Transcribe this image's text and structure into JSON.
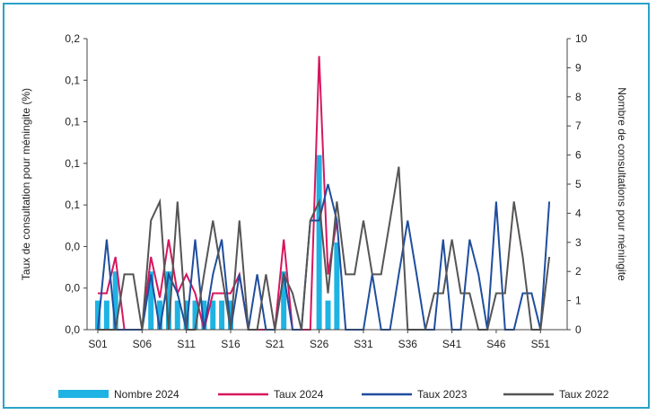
{
  "chart_data": {
    "type": "bar",
    "y_left_label": "Taux de consultation pour méningite (%)",
    "y_right_label": "Nombre de consultations pour méningite",
    "y_left_ticks": [
      "0,0",
      "0,0",
      "0,0",
      "0,1",
      "0,1",
      "0,1",
      "0,1",
      "0,2"
    ],
    "y_left_range": [
      0,
      0.2
    ],
    "y_right_ticks": [
      "0",
      "1",
      "2",
      "3",
      "4",
      "5",
      "6",
      "7",
      "8",
      "9",
      "10"
    ],
    "y_right_range": [
      0,
      10
    ],
    "x_range": [
      1,
      53
    ],
    "x_ticks": [
      "S01",
      "S06",
      "S11",
      "S16",
      "S21",
      "S26",
      "S31",
      "S36",
      "S41",
      "S46",
      "S51"
    ],
    "x_tick_weeks": [
      1,
      6,
      11,
      16,
      21,
      26,
      31,
      36,
      41,
      46,
      51
    ],
    "grid": false,
    "legend_position": "bottom",
    "series": [
      {
        "name": "Nombre 2024",
        "kind": "bar",
        "axis": "right",
        "color": "#1fb3e4",
        "weeks": [
          1,
          2,
          3,
          4,
          5,
          6,
          7,
          8,
          9,
          10,
          11,
          12,
          13,
          14,
          15,
          16,
          17,
          18,
          19,
          20,
          21,
          22,
          23,
          24,
          25,
          26,
          27,
          28
        ],
        "values": [
          1,
          1,
          2,
          0,
          0,
          0,
          2,
          1,
          2,
          1,
          1,
          1,
          1,
          1,
          1,
          1,
          0,
          0,
          0,
          0,
          0,
          2,
          0,
          0,
          0,
          6,
          1,
          3
        ]
      },
      {
        "name": "Taux 2024",
        "kind": "line",
        "axis": "right",
        "color": "#d6175f",
        "weeks": [
          1,
          2,
          3,
          4,
          5,
          6,
          7,
          8,
          9,
          10,
          11,
          12,
          13,
          14,
          15,
          16,
          17,
          18,
          19,
          20,
          21,
          22,
          23,
          24,
          25,
          26,
          27,
          28
        ],
        "values": [
          1.25,
          1.25,
          2.5,
          0,
          0,
          0,
          2.5,
          1.1,
          3.1,
          1.25,
          1.9,
          1.25,
          0,
          1.25,
          1.25,
          1.25,
          1.9,
          0,
          0,
          0,
          0,
          3.1,
          0,
          0,
          0,
          9.4,
          1.9,
          3.75
        ]
      },
      {
        "name": "Taux 2023",
        "kind": "line",
        "axis": "right",
        "color": "#1f4e9e",
        "weeks": [
          1,
          2,
          3,
          4,
          5,
          6,
          7,
          8,
          9,
          10,
          11,
          12,
          13,
          14,
          15,
          16,
          17,
          18,
          19,
          20,
          21,
          22,
          23,
          24,
          25,
          26,
          27,
          28,
          29,
          30,
          31,
          32,
          33,
          34,
          35,
          36,
          37,
          38,
          39,
          40,
          41,
          42,
          43,
          44,
          45,
          46,
          47,
          48,
          49,
          50,
          51,
          52
        ],
        "values": [
          0,
          3.1,
          0,
          0,
          0,
          0,
          1.9,
          0,
          1.9,
          1.25,
          0,
          3.1,
          0,
          1.9,
          3.1,
          0,
          1.9,
          0,
          1.9,
          0,
          0,
          1.9,
          0,
          0,
          3.75,
          3.75,
          5.0,
          3.75,
          0,
          0,
          0,
          1.9,
          0,
          0,
          1.9,
          3.75,
          1.9,
          0,
          0,
          3.1,
          0,
          0,
          3.1,
          1.9,
          0,
          4.4,
          0,
          0,
          1.25,
          1.25,
          0,
          4.4
        ]
      },
      {
        "name": "Taux 2022",
        "kind": "line",
        "axis": "right",
        "color": "#555555",
        "weeks": [
          1,
          2,
          3,
          4,
          5,
          6,
          7,
          8,
          9,
          10,
          11,
          12,
          13,
          14,
          15,
          16,
          17,
          18,
          19,
          20,
          21,
          22,
          23,
          24,
          25,
          26,
          27,
          28,
          29,
          30,
          31,
          32,
          33,
          34,
          35,
          36,
          37,
          38,
          39,
          40,
          41,
          42,
          43,
          44,
          45,
          46,
          47,
          48,
          49,
          50,
          51,
          52
        ],
        "values": [
          0,
          0,
          0,
          1.9,
          1.9,
          0,
          3.75,
          4.4,
          0,
          4.4,
          0,
          0,
          1.9,
          3.75,
          1.9,
          0,
          3.75,
          0,
          0,
          1.9,
          0,
          1.9,
          1.25,
          0,
          3.75,
          4.4,
          1.25,
          4.4,
          1.9,
          1.9,
          3.75,
          1.9,
          1.9,
          3.75,
          5.6,
          0,
          0,
          0,
          1.25,
          1.25,
          3.1,
          1.25,
          1.25,
          0,
          0,
          1.25,
          1.25,
          4.4,
          2.5,
          0,
          0,
          2.5
        ]
      }
    ]
  }
}
